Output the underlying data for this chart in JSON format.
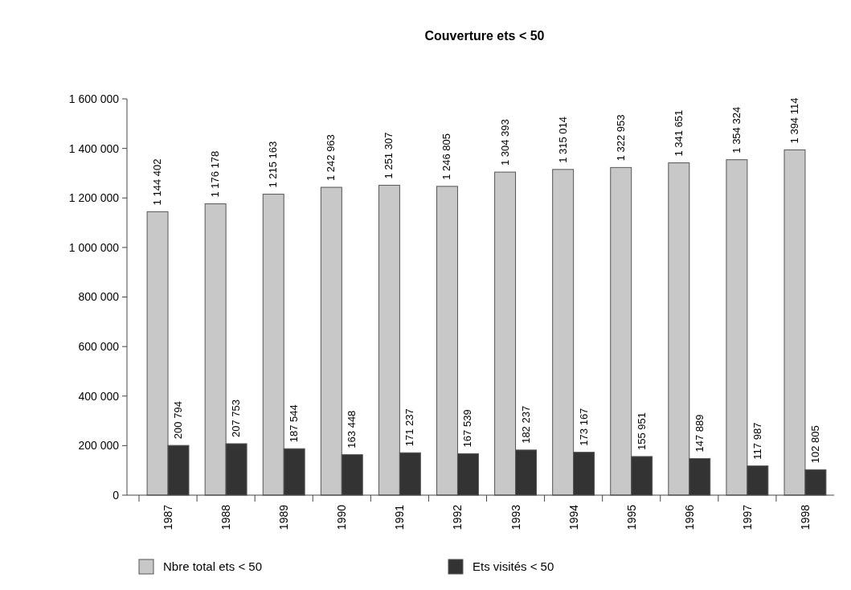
{
  "chart_data": {
    "type": "bar",
    "title": "Couverture ets  < 50",
    "categories": [
      "1987",
      "1988",
      "1989",
      "1990",
      "1991",
      "1992",
      "1993",
      "1994",
      "1995",
      "1996",
      "1997",
      "1998"
    ],
    "series": [
      {
        "name": "Nbre total ets  < 50",
        "color": "#c8c8c8",
        "values": [
          1144402,
          1176178,
          1215163,
          1242963,
          1251307,
          1246805,
          1304393,
          1315014,
          1322953,
          1341651,
          1354324,
          1394114
        ]
      },
      {
        "name": "Ets visités < 50",
        "color": "#333333",
        "values": [
          200794,
          207753,
          187544,
          163448,
          171237,
          167539,
          182237,
          173167,
          155951,
          147889,
          117987,
          102805
        ]
      }
    ],
    "ylim": [
      0,
      1600000
    ],
    "yticks": [
      {
        "value": 0,
        "label": "0"
      },
      {
        "value": 200000,
        "label": "200 000"
      },
      {
        "value": 400000,
        "label": "400 000"
      },
      {
        "value": 600000,
        "label": "600 000"
      },
      {
        "value": 800000,
        "label": "800 000"
      },
      {
        "value": 1000000,
        "label": "1 000 000"
      },
      {
        "value": 1200000,
        "label": "1 200 000"
      },
      {
        "value": 1400000,
        "label": "1 400 000"
      },
      {
        "value": 1600000,
        "label": "1 600 000"
      }
    ],
    "data_labels": true,
    "grid": false,
    "legend": "bottom"
  }
}
